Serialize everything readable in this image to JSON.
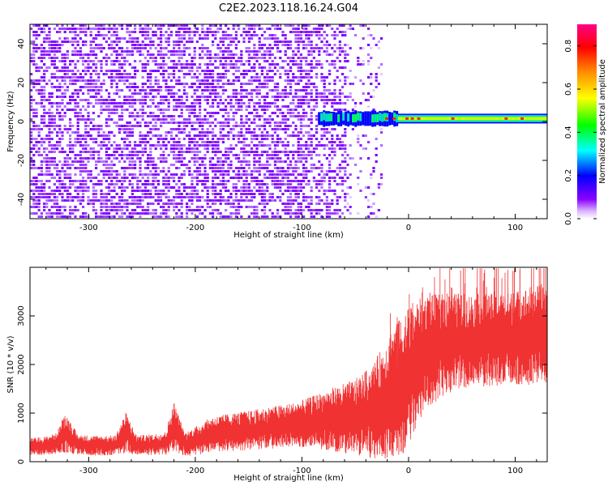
{
  "figure": {
    "title": "C2E2.2023.118.16.24.G04"
  },
  "chart_data": [
    {
      "type": "heatmap",
      "xlabel": "Height of straight line (km)",
      "ylabel": "Frequency (Hz)",
      "xlim": [
        -355,
        130
      ],
      "ylim": [
        -50,
        50
      ],
      "x_ticks": [
        -300,
        -200,
        -100,
        0,
        100
      ],
      "y_ticks": [
        -40,
        -20,
        0,
        20,
        40
      ],
      "x_tick_labels": [
        "-300",
        "-200",
        "-100",
        "0",
        "100"
      ],
      "y_tick_labels": [
        "-40",
        "-20",
        "0",
        "20",
        "40"
      ],
      "colorbar": {
        "label": "Normalized spectral amplitude",
        "range": [
          0,
          0.9
        ],
        "ticks": [
          0,
          0.2,
          0.4,
          0.6,
          0.8
        ],
        "tick_labels": [
          "0.0",
          "0.2",
          "0.4",
          "0.6",
          "0.8"
        ]
      },
      "description_points": {
        "noise_region_x": [
          -355,
          -25
        ],
        "signal_band_x": [
          -85,
          130
        ],
        "signal_frequency_hz": 1.5,
        "signal_band_half_width_hz": 2.5,
        "peak_amplitude": 0.85,
        "noise_amplitude": 0.12
      }
    },
    {
      "type": "line",
      "xlabel": "Height of straight line (km)",
      "ylabel": "SNR (10 * v/v)",
      "xlim": [
        -355,
        130
      ],
      "ylim": [
        0,
        4000
      ],
      "x_ticks": [
        -300,
        -200,
        -100,
        0,
        100
      ],
      "y_ticks": [
        0,
        1000,
        2000,
        3000
      ],
      "x_tick_labels": [
        "-300",
        "-200",
        "-100",
        "0",
        "100"
      ],
      "y_tick_labels": [
        "0",
        "1000",
        "2000",
        "3000"
      ],
      "series_color": "#f03232",
      "envelope": {
        "x": [
          -355,
          -340,
          -330,
          -322,
          -310,
          -290,
          -275,
          -265,
          -255,
          -240,
          -228,
          -220,
          -210,
          -200,
          -185,
          -170,
          -150,
          -130,
          -110,
          -95,
          -80,
          -65,
          -50,
          -35,
          -25,
          -15,
          -5,
          0,
          10,
          20,
          40,
          60,
          80,
          100,
          115,
          130
        ],
        "mean": [
          300,
          330,
          380,
          600,
          350,
          330,
          340,
          600,
          340,
          350,
          380,
          700,
          360,
          420,
          560,
          600,
          640,
          700,
          750,
          800,
          850,
          880,
          920,
          1000,
          1200,
          1400,
          1600,
          1800,
          2100,
          2300,
          2450,
          2500,
          2500,
          2550,
          2600,
          2650
        ],
        "spread": [
          150,
          160,
          180,
          350,
          170,
          170,
          170,
          350,
          170,
          180,
          200,
          450,
          200,
          250,
          300,
          320,
          340,
          360,
          380,
          420,
          500,
          580,
          650,
          800,
          950,
          1100,
          1200,
          1200,
          1050,
          950,
          850,
          800,
          800,
          800,
          850,
          850
        ]
      }
    }
  ]
}
